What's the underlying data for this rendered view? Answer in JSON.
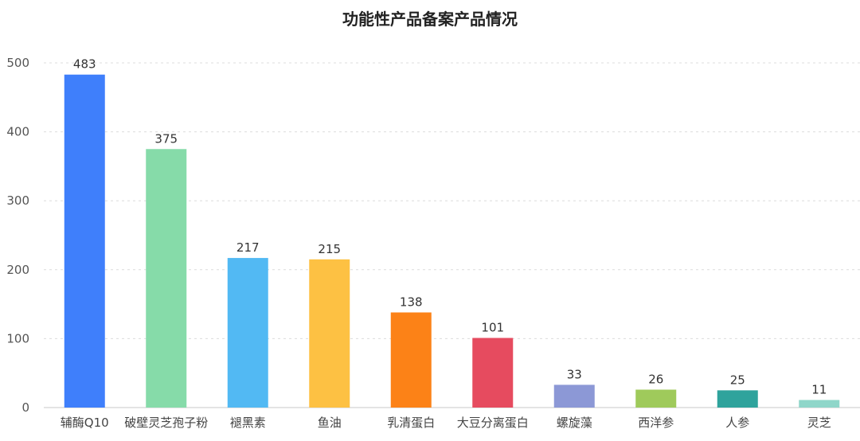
{
  "chart_data": {
    "type": "bar",
    "title": "功能性产品备案产品情况",
    "categories": [
      "辅酶Q10",
      "破壁灵芝孢子粉",
      "褪黑素",
      "鱼油",
      "乳清蛋白",
      "大豆分离蛋白",
      "螺旋藻",
      "西洋参",
      "人参",
      "灵芝"
    ],
    "values": [
      483,
      375,
      217,
      215,
      138,
      101,
      33,
      26,
      25,
      11
    ],
    "colors": [
      "#3f7ffb",
      "#86dba9",
      "#52b9f3",
      "#fdc143",
      "#fc8217",
      "#e64b5f",
      "#8c98d6",
      "#9fca5b",
      "#2fa39c",
      "#8fd6c9"
    ],
    "yticks": [
      0,
      100,
      200,
      300,
      400,
      500
    ],
    "ylim": [
      0,
      500
    ],
    "grid": true,
    "legend": false,
    "xlabel": "",
    "ylabel": ""
  }
}
